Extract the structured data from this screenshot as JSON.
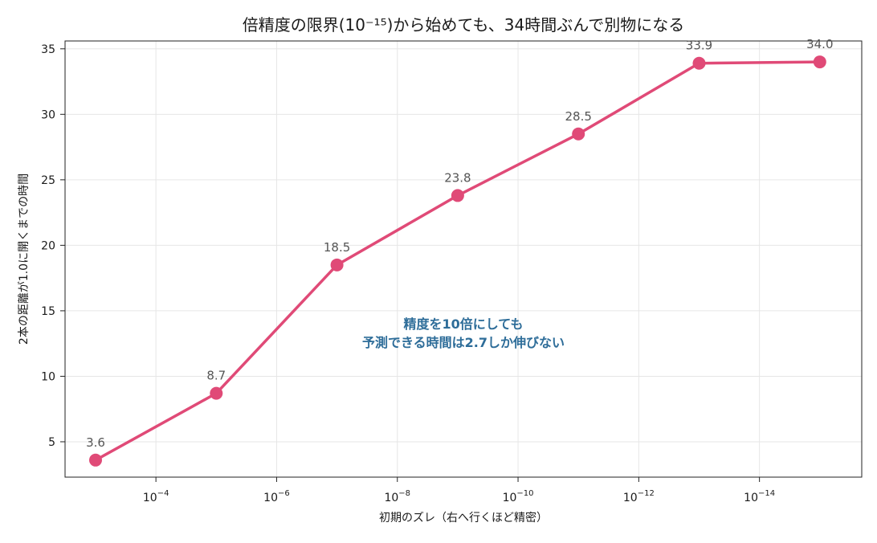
{
  "chart_data": {
    "type": "line",
    "title": "倍精度の限界(10⁻¹⁵)から始めても、34時間ぶんで別物になる",
    "xlabel": "初期のズレ（右へ行くほど精密）",
    "ylabel": "2本の距離が1.0に開くまでの時間",
    "x_scale": "log",
    "x_reversed": true,
    "x": [
      0.001,
      1e-05,
      1e-07,
      1e-09,
      1e-11,
      1e-13,
      1e-15
    ],
    "x_ticks": [
      {
        "value": 0.0001,
        "base": "10",
        "exp": "−4"
      },
      {
        "value": 1e-06,
        "base": "10",
        "exp": "−6"
      },
      {
        "value": 1e-08,
        "base": "10",
        "exp": "−8"
      },
      {
        "value": 1e-10,
        "base": "10",
        "exp": "−10"
      },
      {
        "value": 1e-12,
        "base": "10",
        "exp": "−12"
      },
      {
        "value": 1e-14,
        "base": "10",
        "exp": "−14"
      }
    ],
    "series": [
      {
        "values": [
          3.6,
          8.7,
          18.5,
          23.8,
          28.5,
          33.9,
          34.0
        ],
        "color": "#e04a77"
      }
    ],
    "data_labels": [
      "3.6",
      "8.7",
      "18.5",
      "23.8",
      "28.5",
      "33.9",
      "34.0"
    ],
    "ylim": [
      2.3,
      35.6
    ],
    "y_ticks": [
      5,
      10,
      15,
      20,
      25,
      30,
      35
    ],
    "grid": true,
    "annotation": {
      "lines": [
        "精度を10倍にしても",
        "予測できる時間は2.7しか伸びない"
      ],
      "color": "#2e6d99"
    }
  }
}
